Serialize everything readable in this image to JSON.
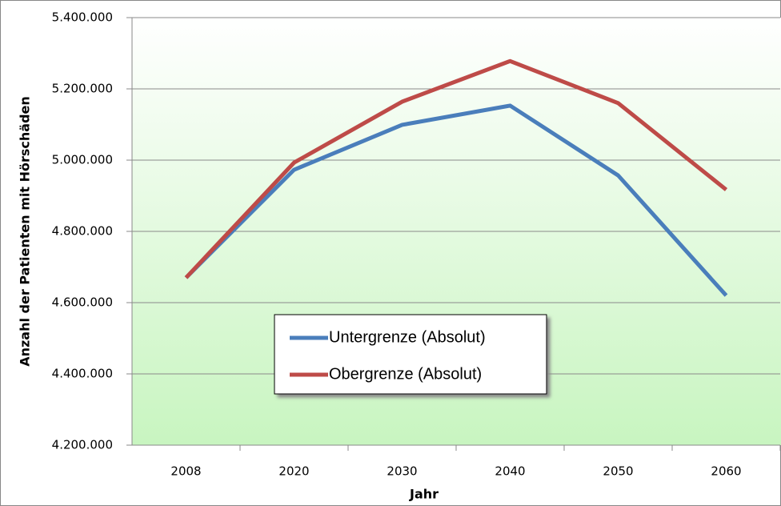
{
  "chart_data": {
    "type": "line",
    "y_label": "Anzahl der Patienten mit Hörschäden",
    "x_label": "Jahr",
    "categories": [
      "2008",
      "2020",
      "2030",
      "2040",
      "2050",
      "2060"
    ],
    "series": [
      {
        "name": "Untergrenze (Absolut)",
        "color": "#4a7ebb",
        "values": [
          4670000,
          4973000,
          5099000,
          5153000,
          4957000,
          4620000
        ]
      },
      {
        "name": "Obergrenze (Absolut)",
        "color": "#be4b48",
        "values": [
          4670000,
          4993000,
          5164000,
          5278000,
          5160000,
          4917000
        ]
      }
    ],
    "ylim": [
      4200000,
      5400000
    ],
    "yticks": [
      {
        "value": 4200000,
        "label": "4.200.000"
      },
      {
        "value": 4400000,
        "label": "4.400.000"
      },
      {
        "value": 4600000,
        "label": "4.600.000"
      },
      {
        "value": 4800000,
        "label": "4.800.000"
      },
      {
        "value": 5000000,
        "label": "5.000.000"
      },
      {
        "value": 5200000,
        "label": "5.200.000"
      },
      {
        "value": 5400000,
        "label": "5.400.000"
      }
    ],
    "grid": true
  }
}
